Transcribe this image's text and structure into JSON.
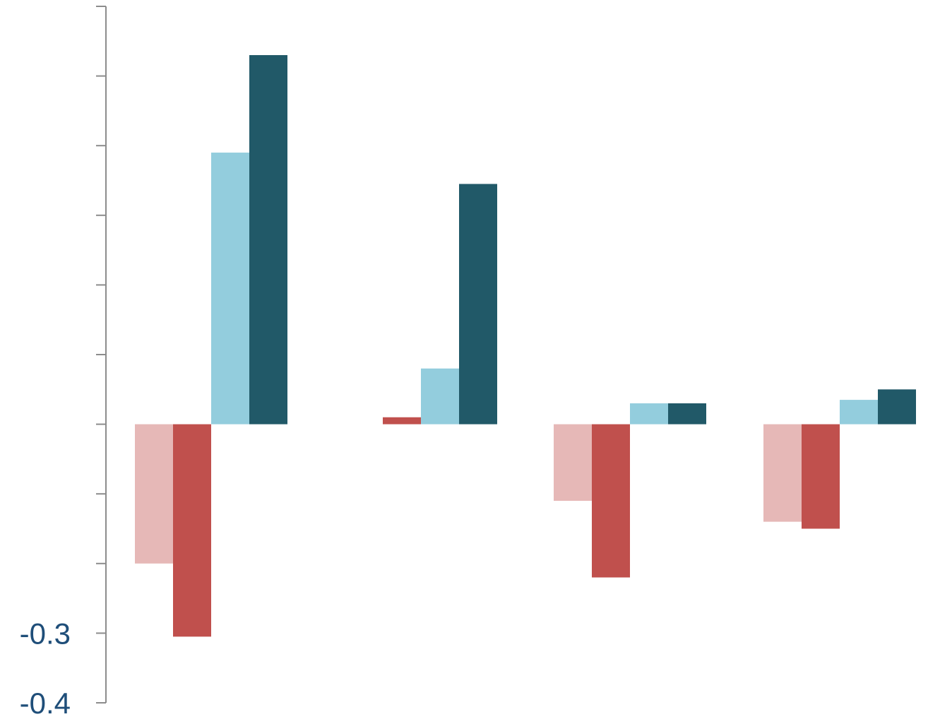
{
  "chart_data": {
    "type": "bar",
    "title": "",
    "xlabel": "",
    "ylabel": "",
    "ylim": [
      -0.4,
      0.6
    ],
    "y_ticks": [
      -0.4,
      -0.3,
      -0.2,
      -0.1,
      0.0,
      0.1,
      0.2,
      0.3,
      0.4,
      0.5,
      0.6
    ],
    "y_tick_labels": [
      "-0.4",
      "-0.3",
      "",
      "",
      "",
      "",
      "",
      "",
      "",
      "",
      ""
    ],
    "grid": false,
    "legend": "none",
    "categories": [
      "",
      "",
      "",
      ""
    ],
    "series": [
      {
        "color": "#e6b8b7",
        "values": [
          -0.2,
          0.0,
          -0.11,
          -0.14
        ]
      },
      {
        "color": "#c0504d",
        "values": [
          -0.305,
          0.01,
          -0.22,
          -0.15
        ]
      },
      {
        "color": "#93cddd",
        "values": [
          0.39,
          0.08,
          0.03,
          0.035
        ]
      },
      {
        "color": "#215968",
        "values": [
          0.53,
          0.345,
          0.03,
          0.05
        ]
      }
    ]
  }
}
